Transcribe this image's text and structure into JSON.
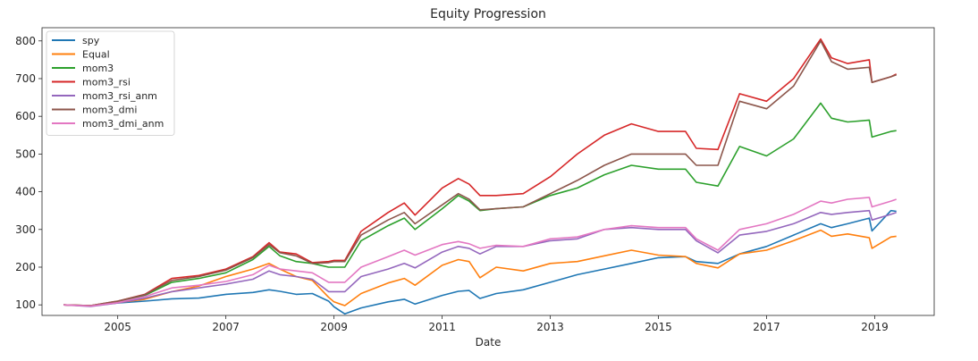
{
  "chart_data": {
    "type": "line",
    "title": "Equity Progression",
    "xlabel": "Date",
    "ylabel": "",
    "xlim": [
      2003.6,
      2020.1
    ],
    "ylim": [
      72,
      835
    ],
    "x_ticks": [
      2005,
      2007,
      2009,
      2011,
      2013,
      2015,
      2017,
      2019
    ],
    "y_ticks": [
      100,
      200,
      300,
      400,
      500,
      600,
      700,
      800
    ],
    "grid": false,
    "legend_position": "top-left",
    "series": [
      {
        "name": "spy",
        "color": "#1f77b4",
        "points": [
          [
            2004.0,
            100
          ],
          [
            2004.5,
            97
          ],
          [
            2005.0,
            105
          ],
          [
            2005.5,
            110
          ],
          [
            2006.0,
            116
          ],
          [
            2006.5,
            118
          ],
          [
            2007.0,
            128
          ],
          [
            2007.5,
            133
          ],
          [
            2007.8,
            140
          ],
          [
            2008.0,
            136
          ],
          [
            2008.3,
            128
          ],
          [
            2008.6,
            130
          ],
          [
            2008.9,
            110
          ],
          [
            2009.0,
            95
          ],
          [
            2009.2,
            76
          ],
          [
            2009.5,
            92
          ],
          [
            2010.0,
            108
          ],
          [
            2010.3,
            115
          ],
          [
            2010.5,
            102
          ],
          [
            2011.0,
            125
          ],
          [
            2011.3,
            136
          ],
          [
            2011.5,
            138
          ],
          [
            2011.7,
            117
          ],
          [
            2012.0,
            130
          ],
          [
            2012.5,
            140
          ],
          [
            2013.0,
            160
          ],
          [
            2013.5,
            180
          ],
          [
            2014.0,
            195
          ],
          [
            2014.5,
            210
          ],
          [
            2015.0,
            225
          ],
          [
            2015.5,
            228
          ],
          [
            2015.7,
            215
          ],
          [
            2016.1,
            210
          ],
          [
            2016.5,
            235
          ],
          [
            2017.0,
            255
          ],
          [
            2017.5,
            285
          ],
          [
            2018.0,
            315
          ],
          [
            2018.2,
            305
          ],
          [
            2018.5,
            315
          ],
          [
            2018.9,
            330
          ],
          [
            2018.95,
            296
          ],
          [
            2019.3,
            350
          ],
          [
            2019.4,
            348
          ]
        ]
      },
      {
        "name": "Equal",
        "color": "#ff7f0e",
        "points": [
          [
            2004.0,
            100
          ],
          [
            2004.5,
            97
          ],
          [
            2005.0,
            106
          ],
          [
            2005.5,
            115
          ],
          [
            2006.0,
            135
          ],
          [
            2006.5,
            150
          ],
          [
            2007.0,
            175
          ],
          [
            2007.5,
            195
          ],
          [
            2007.8,
            210
          ],
          [
            2008.0,
            195
          ],
          [
            2008.3,
            175
          ],
          [
            2008.6,
            165
          ],
          [
            2008.9,
            120
          ],
          [
            2009.0,
            108
          ],
          [
            2009.2,
            98
          ],
          [
            2009.5,
            130
          ],
          [
            2010.0,
            158
          ],
          [
            2010.3,
            170
          ],
          [
            2010.5,
            152
          ],
          [
            2011.0,
            205
          ],
          [
            2011.3,
            220
          ],
          [
            2011.5,
            215
          ],
          [
            2011.7,
            172
          ],
          [
            2012.0,
            200
          ],
          [
            2012.5,
            190
          ],
          [
            2013.0,
            210
          ],
          [
            2013.5,
            215
          ],
          [
            2014.0,
            230
          ],
          [
            2014.5,
            245
          ],
          [
            2015.0,
            232
          ],
          [
            2015.5,
            228
          ],
          [
            2015.7,
            210
          ],
          [
            2016.1,
            198
          ],
          [
            2016.5,
            235
          ],
          [
            2017.0,
            245
          ],
          [
            2017.5,
            270
          ],
          [
            2018.0,
            298
          ],
          [
            2018.2,
            282
          ],
          [
            2018.5,
            288
          ],
          [
            2018.9,
            278
          ],
          [
            2018.95,
            250
          ],
          [
            2019.3,
            280
          ],
          [
            2019.4,
            282
          ]
        ]
      },
      {
        "name": "mom3",
        "color": "#2ca02c",
        "points": [
          [
            2004.0,
            100
          ],
          [
            2004.5,
            98
          ],
          [
            2005.0,
            108
          ],
          [
            2005.5,
            125
          ],
          [
            2006.0,
            160
          ],
          [
            2006.5,
            170
          ],
          [
            2007.0,
            185
          ],
          [
            2007.5,
            220
          ],
          [
            2007.8,
            255
          ],
          [
            2008.0,
            230
          ],
          [
            2008.3,
            215
          ],
          [
            2008.6,
            210
          ],
          [
            2008.9,
            200
          ],
          [
            2009.0,
            200
          ],
          [
            2009.2,
            200
          ],
          [
            2009.5,
            270
          ],
          [
            2010.0,
            310
          ],
          [
            2010.3,
            330
          ],
          [
            2010.5,
            300
          ],
          [
            2011.0,
            355
          ],
          [
            2011.3,
            390
          ],
          [
            2011.5,
            375
          ],
          [
            2011.7,
            350
          ],
          [
            2012.0,
            355
          ],
          [
            2012.5,
            360
          ],
          [
            2013.0,
            390
          ],
          [
            2013.5,
            410
          ],
          [
            2014.0,
            445
          ],
          [
            2014.5,
            470
          ],
          [
            2015.0,
            460
          ],
          [
            2015.5,
            460
          ],
          [
            2015.7,
            425
          ],
          [
            2016.1,
            415
          ],
          [
            2016.5,
            520
          ],
          [
            2017.0,
            495
          ],
          [
            2017.5,
            540
          ],
          [
            2018.0,
            635
          ],
          [
            2018.2,
            595
          ],
          [
            2018.5,
            585
          ],
          [
            2018.9,
            590
          ],
          [
            2018.95,
            545
          ],
          [
            2019.3,
            560
          ],
          [
            2019.4,
            562
          ]
        ]
      },
      {
        "name": "mom3_rsi",
        "color": "#d62728",
        "points": [
          [
            2004.0,
            100
          ],
          [
            2004.5,
            98
          ],
          [
            2005.0,
            110
          ],
          [
            2005.5,
            128
          ],
          [
            2006.0,
            170
          ],
          [
            2006.5,
            178
          ],
          [
            2007.0,
            195
          ],
          [
            2007.5,
            228
          ],
          [
            2007.8,
            265
          ],
          [
            2008.0,
            240
          ],
          [
            2008.3,
            235
          ],
          [
            2008.6,
            212
          ],
          [
            2008.9,
            215
          ],
          [
            2009.0,
            218
          ],
          [
            2009.2,
            218
          ],
          [
            2009.5,
            295
          ],
          [
            2010.0,
            345
          ],
          [
            2010.3,
            370
          ],
          [
            2010.5,
            338
          ],
          [
            2011.0,
            410
          ],
          [
            2011.3,
            435
          ],
          [
            2011.5,
            420
          ],
          [
            2011.7,
            390
          ],
          [
            2012.0,
            390
          ],
          [
            2012.5,
            395
          ],
          [
            2013.0,
            440
          ],
          [
            2013.5,
            500
          ],
          [
            2014.0,
            550
          ],
          [
            2014.5,
            580
          ],
          [
            2015.0,
            560
          ],
          [
            2015.5,
            560
          ],
          [
            2015.7,
            515
          ],
          [
            2016.1,
            512
          ],
          [
            2016.5,
            660
          ],
          [
            2017.0,
            640
          ],
          [
            2017.5,
            700
          ],
          [
            2018.0,
            805
          ],
          [
            2018.2,
            755
          ],
          [
            2018.5,
            740
          ],
          [
            2018.9,
            750
          ],
          [
            2018.95,
            690
          ],
          [
            2019.3,
            705
          ],
          [
            2019.4,
            712
          ]
        ]
      },
      {
        "name": "mom3_rsi_anm",
        "color": "#9467bd",
        "points": [
          [
            2004.0,
            100
          ],
          [
            2004.5,
            96
          ],
          [
            2005.0,
            105
          ],
          [
            2005.5,
            118
          ],
          [
            2006.0,
            135
          ],
          [
            2006.5,
            145
          ],
          [
            2007.0,
            155
          ],
          [
            2007.5,
            168
          ],
          [
            2007.8,
            190
          ],
          [
            2008.0,
            180
          ],
          [
            2008.3,
            175
          ],
          [
            2008.6,
            168
          ],
          [
            2008.9,
            135
          ],
          [
            2009.0,
            135
          ],
          [
            2009.2,
            135
          ],
          [
            2009.5,
            175
          ],
          [
            2010.0,
            195
          ],
          [
            2010.3,
            210
          ],
          [
            2010.5,
            198
          ],
          [
            2011.0,
            240
          ],
          [
            2011.3,
            255
          ],
          [
            2011.5,
            250
          ],
          [
            2011.7,
            235
          ],
          [
            2012.0,
            255
          ],
          [
            2012.5,
            255
          ],
          [
            2013.0,
            270
          ],
          [
            2013.5,
            275
          ],
          [
            2014.0,
            300
          ],
          [
            2014.5,
            305
          ],
          [
            2015.0,
            300
          ],
          [
            2015.5,
            300
          ],
          [
            2015.7,
            270
          ],
          [
            2016.1,
            238
          ],
          [
            2016.5,
            285
          ],
          [
            2017.0,
            295
          ],
          [
            2017.5,
            315
          ],
          [
            2018.0,
            345
          ],
          [
            2018.2,
            340
          ],
          [
            2018.5,
            345
          ],
          [
            2018.9,
            350
          ],
          [
            2018.95,
            325
          ],
          [
            2019.3,
            340
          ],
          [
            2019.4,
            345
          ]
        ]
      },
      {
        "name": "mom3_dmi",
        "color": "#8c564b",
        "points": [
          [
            2004.0,
            100
          ],
          [
            2004.5,
            98
          ],
          [
            2005.0,
            110
          ],
          [
            2005.5,
            127
          ],
          [
            2006.0,
            165
          ],
          [
            2006.5,
            175
          ],
          [
            2007.0,
            192
          ],
          [
            2007.5,
            225
          ],
          [
            2007.8,
            260
          ],
          [
            2008.0,
            238
          ],
          [
            2008.3,
            230
          ],
          [
            2008.6,
            210
          ],
          [
            2008.9,
            212
          ],
          [
            2009.0,
            215
          ],
          [
            2009.2,
            215
          ],
          [
            2009.5,
            285
          ],
          [
            2010.0,
            325
          ],
          [
            2010.3,
            345
          ],
          [
            2010.5,
            315
          ],
          [
            2011.0,
            365
          ],
          [
            2011.3,
            395
          ],
          [
            2011.5,
            380
          ],
          [
            2011.7,
            352
          ],
          [
            2012.0,
            355
          ],
          [
            2012.5,
            360
          ],
          [
            2013.0,
            395
          ],
          [
            2013.5,
            430
          ],
          [
            2014.0,
            470
          ],
          [
            2014.5,
            500
          ],
          [
            2015.0,
            500
          ],
          [
            2015.5,
            500
          ],
          [
            2015.7,
            470
          ],
          [
            2016.1,
            470
          ],
          [
            2016.5,
            640
          ],
          [
            2017.0,
            620
          ],
          [
            2017.5,
            680
          ],
          [
            2018.0,
            800
          ],
          [
            2018.2,
            745
          ],
          [
            2018.5,
            725
          ],
          [
            2018.9,
            730
          ],
          [
            2018.95,
            690
          ],
          [
            2019.3,
            705
          ],
          [
            2019.4,
            710
          ]
        ]
      },
      {
        "name": "mom3_dmi_anm",
        "color": "#e377c2",
        "points": [
          [
            2004.0,
            100
          ],
          [
            2004.5,
            97
          ],
          [
            2005.0,
            106
          ],
          [
            2005.5,
            122
          ],
          [
            2006.0,
            145
          ],
          [
            2006.5,
            152
          ],
          [
            2007.0,
            162
          ],
          [
            2007.5,
            180
          ],
          [
            2007.8,
            205
          ],
          [
            2008.0,
            195
          ],
          [
            2008.3,
            190
          ],
          [
            2008.6,
            185
          ],
          [
            2008.9,
            160
          ],
          [
            2009.0,
            160
          ],
          [
            2009.2,
            160
          ],
          [
            2009.5,
            200
          ],
          [
            2010.0,
            228
          ],
          [
            2010.3,
            245
          ],
          [
            2010.5,
            232
          ],
          [
            2011.0,
            260
          ],
          [
            2011.3,
            268
          ],
          [
            2011.5,
            262
          ],
          [
            2011.7,
            250
          ],
          [
            2012.0,
            258
          ],
          [
            2012.5,
            255
          ],
          [
            2013.0,
            275
          ],
          [
            2013.5,
            280
          ],
          [
            2014.0,
            300
          ],
          [
            2014.5,
            310
          ],
          [
            2015.0,
            305
          ],
          [
            2015.5,
            305
          ],
          [
            2015.7,
            275
          ],
          [
            2016.1,
            245
          ],
          [
            2016.5,
            300
          ],
          [
            2017.0,
            315
          ],
          [
            2017.5,
            340
          ],
          [
            2018.0,
            375
          ],
          [
            2018.2,
            370
          ],
          [
            2018.5,
            380
          ],
          [
            2018.9,
            385
          ],
          [
            2018.95,
            360
          ],
          [
            2019.3,
            375
          ],
          [
            2019.4,
            380
          ]
        ]
      }
    ]
  }
}
